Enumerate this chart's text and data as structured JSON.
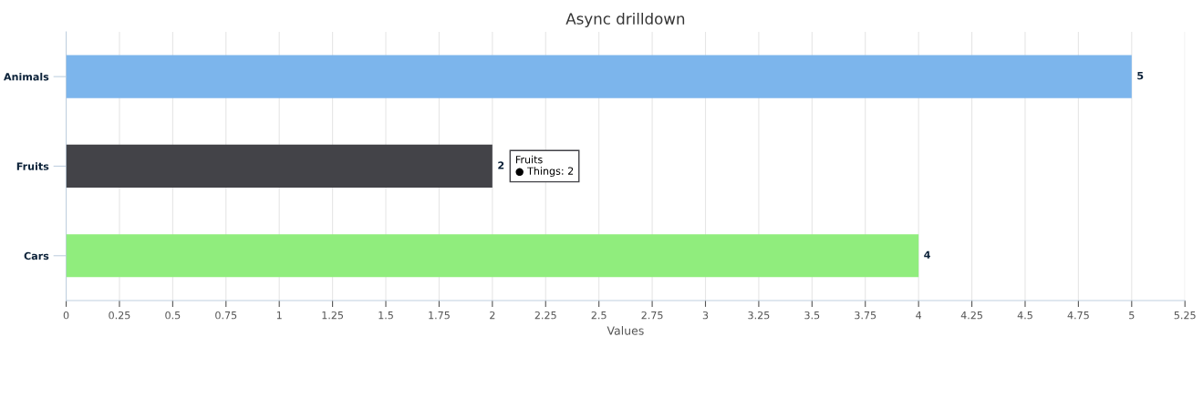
{
  "chart_data": {
    "type": "bar",
    "orientation": "horizontal",
    "title": "Async drilldown",
    "xlabel": "Values",
    "categories": [
      "Animals",
      "Fruits",
      "Cars"
    ],
    "values": [
      5,
      2,
      4
    ],
    "colors": [
      "#7cb5ec",
      "#434348",
      "#90ed7d"
    ],
    "xlim": [
      0,
      5.25
    ],
    "xticks": [
      0,
      0.25,
      0.5,
      0.75,
      1,
      1.25,
      1.5,
      1.75,
      2,
      2.25,
      2.5,
      2.75,
      3,
      3.25,
      3.5,
      3.75,
      4,
      4.25,
      4.5,
      4.75,
      5,
      5.25
    ],
    "grid": "x",
    "data_labels": true,
    "annotations": [
      {
        "text": "Fruits\n● Things: 2",
        "x": 2,
        "y": "Fruits"
      }
    ]
  }
}
